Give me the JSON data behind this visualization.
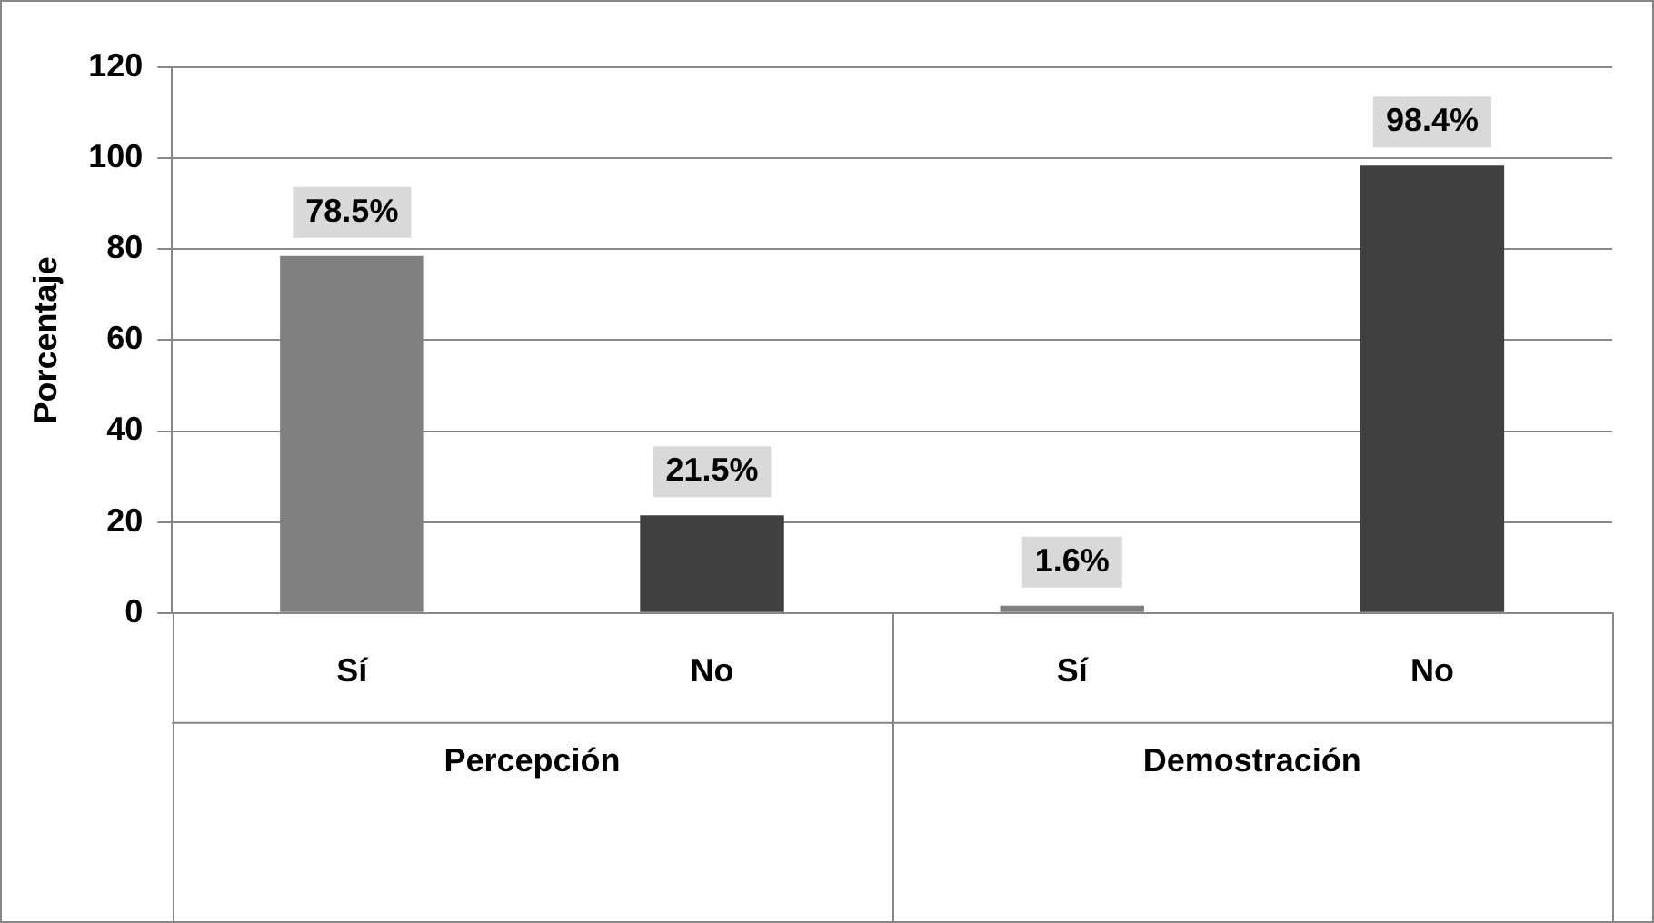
{
  "chart_data": {
    "type": "bar",
    "ylabel": "Porcentaje",
    "categories": [
      "Sí",
      "No",
      "Sí",
      "No"
    ],
    "values": [
      78.5,
      21.5,
      1.6,
      98.4
    ],
    "colors": [
      "#808080",
      "#404040",
      "#808080",
      "#404040"
    ],
    "value_labels": [
      "78.5%",
      "21.5%",
      "1.6%",
      "98.4%"
    ],
    "annotations": [
      "Percepción",
      "Demostración"
    ],
    "ylim": [
      0,
      120
    ],
    "yticks": [
      0,
      20,
      40,
      60,
      80,
      100,
      120
    ],
    "grid": "y",
    "legend": false
  }
}
